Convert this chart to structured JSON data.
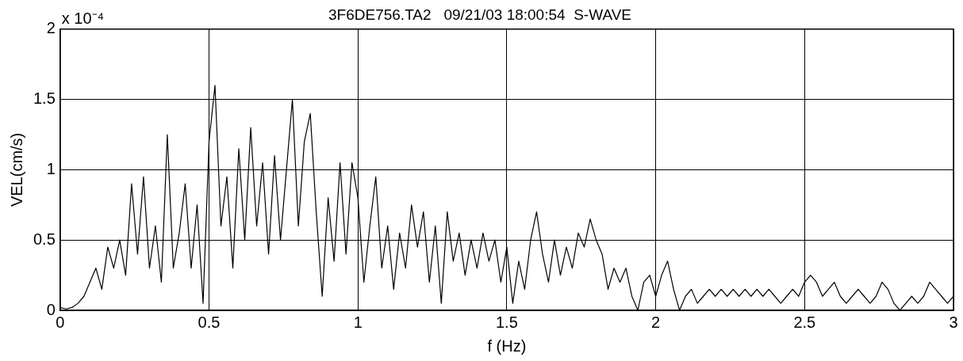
{
  "chart_data": {
    "type": "line",
    "title": "3F6DE756.TA2   09/21/03 18:00:54  S-WAVE",
    "xlabel": "f (Hz)",
    "ylabel": "VEL(cm/s)",
    "annotations": [
      "x 10⁻⁴"
    ],
    "x": [
      0,
      0.02,
      0.04,
      0.06,
      0.08,
      0.1,
      0.12,
      0.14,
      0.16,
      0.18,
      0.2,
      0.22,
      0.24,
      0.26,
      0.28,
      0.3,
      0.32,
      0.34,
      0.36,
      0.38,
      0.4,
      0.42,
      0.44,
      0.46,
      0.48,
      0.5,
      0.52,
      0.54,
      0.56,
      0.58,
      0.6,
      0.62,
      0.64,
      0.66,
      0.68,
      0.7,
      0.72,
      0.74,
      0.76,
      0.78,
      0.8,
      0.82,
      0.84,
      0.86,
      0.88,
      0.9,
      0.92,
      0.94,
      0.96,
      0.98,
      1,
      1.02,
      1.04,
      1.06,
      1.08,
      1.1,
      1.12,
      1.14,
      1.16,
      1.18,
      1.2,
      1.22,
      1.24,
      1.26,
      1.28,
      1.3,
      1.32,
      1.34,
      1.36,
      1.38,
      1.4,
      1.42,
      1.44,
      1.46,
      1.48,
      1.5,
      1.52,
      1.54,
      1.56,
      1.58,
      1.6,
      1.62,
      1.64,
      1.66,
      1.68,
      1.7,
      1.72,
      1.74,
      1.76,
      1.78,
      1.8,
      1.82,
      1.84,
      1.86,
      1.88,
      1.9,
      1.92,
      1.94,
      1.96,
      1.98,
      2,
      2.02,
      2.04,
      2.06,
      2.08,
      2.1,
      2.12,
      2.14,
      2.16,
      2.18,
      2.2,
      2.22,
      2.24,
      2.26,
      2.28,
      2.3,
      2.32,
      2.34,
      2.36,
      2.38,
      2.4,
      2.42,
      2.44,
      2.46,
      2.48,
      2.5,
      2.52,
      2.54,
      2.56,
      2.58,
      2.6,
      2.62,
      2.64,
      2.66,
      2.68,
      2.7,
      2.72,
      2.74,
      2.76,
      2.78,
      2.8,
      2.82,
      2.84,
      2.86,
      2.88,
      2.9,
      2.92,
      2.94,
      2.96,
      2.98,
      3
    ],
    "series": [
      {
        "color": "#000000",
        "values": [
          0.02,
          0.01,
          0.02,
          0.05,
          0.1,
          0.2,
          0.3,
          0.15,
          0.45,
          0.3,
          0.5,
          0.25,
          0.9,
          0.4,
          0.95,
          0.3,
          0.6,
          0.2,
          1.25,
          0.3,
          0.55,
          0.9,
          0.3,
          0.75,
          0.05,
          1.2,
          1.6,
          0.6,
          0.95,
          0.3,
          1.15,
          0.5,
          1.3,
          0.6,
          1.05,
          0.4,
          1.1,
          0.5,
          1.0,
          1.5,
          0.6,
          1.2,
          1.4,
          0.7,
          0.1,
          0.8,
          0.35,
          1.05,
          0.4,
          1.05,
          0.8,
          0.2,
          0.6,
          0.95,
          0.3,
          0.6,
          0.15,
          0.55,
          0.3,
          0.75,
          0.45,
          0.7,
          0.2,
          0.6,
          0.05,
          0.7,
          0.35,
          0.55,
          0.25,
          0.5,
          0.3,
          0.55,
          0.35,
          0.5,
          0.2,
          0.45,
          0.05,
          0.35,
          0.15,
          0.5,
          0.7,
          0.4,
          0.2,
          0.5,
          0.25,
          0.45,
          0.3,
          0.55,
          0.45,
          0.65,
          0.5,
          0.4,
          0.15,
          0.3,
          0.2,
          0.3,
          0.1,
          0,
          0.2,
          0.25,
          0.1,
          0.25,
          0.35,
          0.15,
          0,
          0.1,
          0.15,
          0.05,
          0.1,
          0.15,
          0.1,
          0.15,
          0.1,
          0.15,
          0.1,
          0.15,
          0.1,
          0.15,
          0.1,
          0.15,
          0.1,
          0.05,
          0.1,
          0.15,
          0.1,
          0.2,
          0.25,
          0.2,
          0.1,
          0.15,
          0.2,
          0.1,
          0.05,
          0.1,
          0.15,
          0.1,
          0.05,
          0.1,
          0.2,
          0.15,
          0.05,
          0,
          0.05,
          0.1,
          0.05,
          0.1,
          0.2,
          0.15,
          0.1,
          0.05,
          0.1
        ]
      }
    ],
    "xlim": [
      0,
      3
    ],
    "xticks": [
      0,
      0.5,
      1,
      1.5,
      2,
      2.5,
      3
    ],
    "ylim": [
      0,
      2
    ],
    "yticks": [
      0,
      0.5,
      1,
      1.5,
      2
    ],
    "grid": true,
    "legend": false,
    "marker": "none",
    "line_style": "solid"
  }
}
